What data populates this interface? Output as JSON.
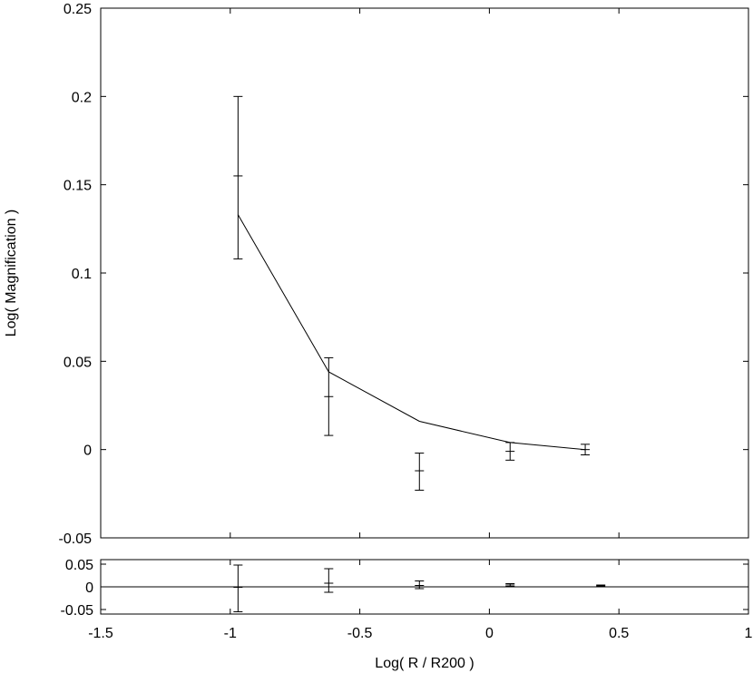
{
  "chart_data": [
    {
      "type": "line",
      "xlabel": "",
      "ylabel": "Log( Magnification )",
      "xlim": [
        -1.5,
        1.0
      ],
      "ylim": [
        -0.05,
        0.25
      ],
      "yticks": [
        -0.05,
        0,
        0.05,
        0.1,
        0.15,
        0.2,
        0.25
      ],
      "ytick_labels": [
        "-0.05",
        "0",
        "0.05",
        "0.1",
        "0.15",
        "0.2",
        "0.25"
      ],
      "grid": false,
      "series": [
        {
          "type": "errorbar",
          "points": [
            {
              "x": -0.97,
              "y": 0.155,
              "ylow": 0.108,
              "yhigh": 0.2
            },
            {
              "x": -0.62,
              "y": 0.03,
              "ylow": 0.008,
              "yhigh": 0.052
            },
            {
              "x": -0.27,
              "y": -0.012,
              "ylow": -0.023,
              "yhigh": -0.002
            },
            {
              "x": 0.08,
              "y": -0.001,
              "ylow": -0.006,
              "yhigh": 0.004
            },
            {
              "x": 0.37,
              "y": 0.0,
              "ylow": -0.003,
              "yhigh": 0.003
            }
          ]
        },
        {
          "type": "line",
          "x": [
            -0.97,
            -0.62,
            -0.27,
            0.08,
            0.37
          ],
          "y": [
            0.133,
            0.044,
            0.016,
            0.004,
            0.0
          ]
        }
      ]
    },
    {
      "type": "scatter",
      "xlabel": "Log( R / R200 )",
      "ylabel": "",
      "xlim": [
        -1.5,
        1.0
      ],
      "ylim": [
        -0.06,
        0.06
      ],
      "xticks": [
        -1.5,
        -1,
        -0.5,
        0,
        0.5,
        1
      ],
      "xtick_labels": [
        "-1.5",
        "-1",
        "-0.5",
        "0",
        "0.5",
        "1"
      ],
      "yticks": [
        -0.05,
        0,
        0.05
      ],
      "ytick_labels": [
        "-0.05",
        "0",
        "0.05"
      ],
      "grid": false,
      "reference_line_y": 0,
      "series": [
        {
          "type": "errorbar",
          "points": [
            {
              "x": -0.97,
              "y": -0.001,
              "ylow": -0.055,
              "yhigh": 0.048
            },
            {
              "x": -0.62,
              "y": 0.008,
              "ylow": -0.012,
              "yhigh": 0.04
            },
            {
              "x": -0.27,
              "y": 0.003,
              "ylow": -0.004,
              "yhigh": 0.013
            },
            {
              "x": 0.08,
              "y": 0.004,
              "ylow": 0.001,
              "yhigh": 0.007
            },
            {
              "x": 0.43,
              "y": 0.002,
              "ylow": 0.0,
              "yhigh": 0.004
            }
          ]
        }
      ]
    }
  ]
}
